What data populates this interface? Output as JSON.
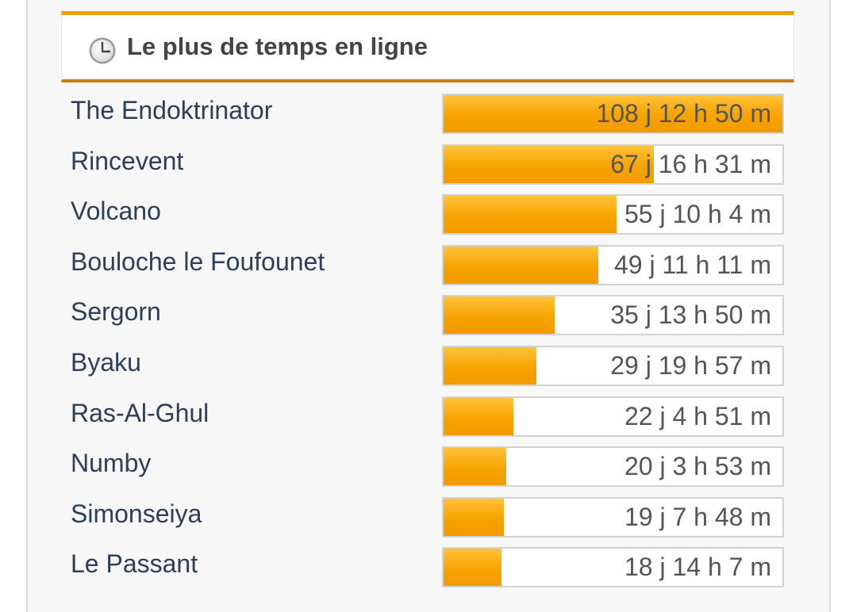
{
  "header": {
    "title": "Le plus de temps en ligne",
    "icon": "clock-icon"
  },
  "colors": {
    "accent": "#f0a000",
    "header_bottom_border": "#c87a14",
    "bar_fill": "#f7a300",
    "name_text": "#2c3e5a",
    "value_text": "#555555"
  },
  "leaderboard": [
    {
      "name": "The Endoktrinator",
      "time": "108 j 12 h 50 m",
      "fraction": 1.0
    },
    {
      "name": "Rincevent",
      "time": "67 j 16 h 31 m",
      "fraction": 0.62
    },
    {
      "name": "Volcano",
      "time": "55 j 10 h 4 m",
      "fraction": 0.51
    },
    {
      "name": "Bouloche le Foufounet",
      "time": "49 j 11 h 11 m",
      "fraction": 0.456
    },
    {
      "name": "Sergorn",
      "time": "35 j 13 h 50 m",
      "fraction": 0.328
    },
    {
      "name": "Byaku",
      "time": "29 j 19 h 57 m",
      "fraction": 0.275
    },
    {
      "name": "Ras-Al-Ghul",
      "time": "22 j 4 h 51 m",
      "fraction": 0.205
    },
    {
      "name": "Numby",
      "time": "20 j 3 h 53 m",
      "fraction": 0.186
    },
    {
      "name": "Simonseiya",
      "time": "19 j 7 h 48 m",
      "fraction": 0.178
    },
    {
      "name": "Le Passant",
      "time": "18 j 14 h 7 m",
      "fraction": 0.171
    }
  ]
}
